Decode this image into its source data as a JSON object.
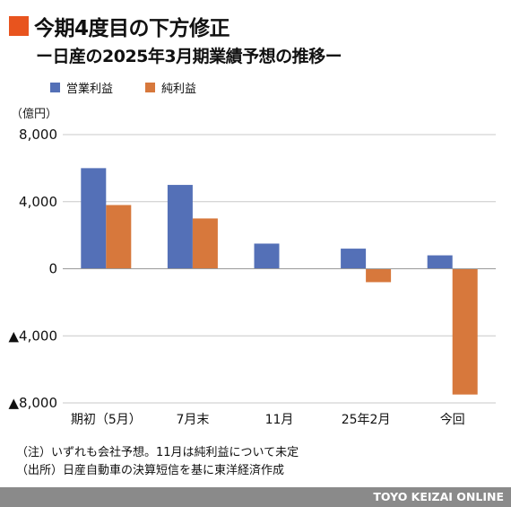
{
  "title": "今期4度目の下方修正",
  "subtitle": "ー日産の2025年3月期業績予想の推移ー",
  "colors": {
    "accent": "#e8541e",
    "operating": "#5470b7",
    "net": "#d7783c"
  },
  "chart_data": {
    "type": "bar",
    "unit_label": "（億円）",
    "categories": [
      "期初（5月）",
      "7月末",
      "11月",
      "25年2月",
      "今回"
    ],
    "series": [
      {
        "name": "営業利益",
        "values": [
          6000,
          5000,
          1500,
          1200,
          800
        ]
      },
      {
        "name": "純利益",
        "values": [
          3800,
          3000,
          null,
          -800,
          -7500
        ]
      }
    ],
    "ylim": [
      -8000,
      8000
    ],
    "y_ticks": [
      8000,
      4000,
      0,
      -4000,
      -8000
    ],
    "y_tick_labels": [
      "8,000",
      "4,000",
      "0",
      "▲4,000",
      "▲8,000"
    ],
    "grid": true,
    "legend_position": "top-left"
  },
  "notes": [
    "（注）いずれも会社予想。11月は純利益について未定",
    "（出所）日産自動車の決算短信を基に東洋経済作成"
  ],
  "footer": "TOYO KEIZAI ONLINE"
}
